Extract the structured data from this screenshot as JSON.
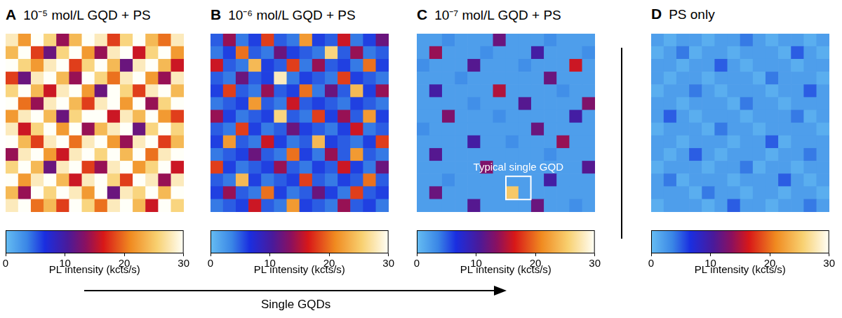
{
  "chart_data": [
    {
      "type": "heatmap",
      "label": "A",
      "title": "10⁻⁵ mol/L GQD + PS",
      "tick_labels": false,
      "cells": [
        [
          28,
          22,
          30,
          26,
          14,
          24,
          30,
          28,
          18,
          26,
          30,
          24,
          20,
          28
        ],
        [
          24,
          30,
          18,
          12,
          26,
          30,
          22,
          14,
          28,
          30,
          16,
          26,
          30,
          22
        ],
        [
          30,
          26,
          22,
          28,
          30,
          18,
          26,
          30,
          24,
          12,
          28,
          30,
          24,
          16
        ],
        [
          18,
          12,
          28,
          30,
          24,
          14,
          30,
          26,
          20,
          28,
          30,
          22,
          14,
          28
        ],
        [
          26,
          30,
          24,
          16,
          28,
          30,
          22,
          12,
          30,
          26,
          18,
          28,
          30,
          24
        ],
        [
          30,
          20,
          14,
          28,
          30,
          24,
          18,
          28,
          30,
          22,
          30,
          14,
          26,
          30
        ],
        [
          22,
          28,
          30,
          24,
          12,
          26,
          30,
          30,
          16,
          28,
          24,
          30,
          22,
          18
        ],
        [
          28,
          16,
          26,
          30,
          22,
          30,
          14,
          24,
          28,
          30,
          12,
          26,
          30,
          26
        ],
        [
          30,
          24,
          18,
          28,
          30,
          20,
          28,
          30,
          22,
          14,
          28,
          30,
          18,
          24
        ],
        [
          14,
          28,
          30,
          22,
          16,
          28,
          30,
          26,
          30,
          24,
          30,
          20,
          28,
          30
        ],
        [
          26,
          30,
          24,
          12,
          28,
          30,
          18,
          14,
          28,
          30,
          22,
          26,
          30,
          16
        ],
        [
          30,
          22,
          28,
          30,
          24,
          16,
          28,
          30,
          26,
          18,
          30,
          28,
          14,
          28
        ],
        [
          24,
          14,
          30,
          26,
          30,
          28,
          22,
          30,
          12,
          28,
          26,
          30,
          24,
          30
        ],
        [
          28,
          30,
          20,
          24,
          18,
          30,
          26,
          20,
          28,
          30,
          24,
          16,
          30,
          26
        ]
      ],
      "colorbar": {
        "label": "PL intensity (kcts/s)",
        "range": [
          0,
          30
        ],
        "ticks": [
          0,
          10,
          20,
          30
        ]
      }
    },
    {
      "type": "heatmap",
      "label": "B",
      "title": "10⁻⁶ mol/L GQD + PS",
      "tick_labels": false,
      "cells": [
        [
          5,
          14,
          4,
          6,
          18,
          5,
          4,
          22,
          6,
          5,
          16,
          4,
          6,
          12
        ],
        [
          4,
          6,
          20,
          5,
          4,
          12,
          6,
          5,
          4,
          26,
          5,
          14,
          4,
          5
        ],
        [
          16,
          5,
          4,
          24,
          6,
          5,
          18,
          4,
          14,
          5,
          6,
          4,
          20,
          6
        ],
        [
          5,
          4,
          12,
          5,
          6,
          28,
          4,
          6,
          5,
          4,
          18,
          6,
          5,
          4
        ],
        [
          6,
          18,
          5,
          4,
          14,
          5,
          6,
          20,
          4,
          12,
          5,
          24,
          6,
          14
        ],
        [
          4,
          5,
          6,
          22,
          5,
          4,
          16,
          5,
          6,
          5,
          4,
          6,
          5,
          4
        ],
        [
          14,
          6,
          4,
          5,
          6,
          26,
          5,
          4,
          18,
          6,
          14,
          5,
          22,
          6
        ],
        [
          5,
          4,
          18,
          6,
          4,
          5,
          12,
          6,
          5,
          4,
          6,
          16,
          4,
          5
        ],
        [
          6,
          22,
          5,
          4,
          16,
          6,
          4,
          5,
          24,
          6,
          5,
          4,
          6,
          18
        ],
        [
          4,
          5,
          6,
          12,
          5,
          4,
          20,
          6,
          4,
          14,
          5,
          22,
          5,
          4
        ],
        [
          18,
          6,
          4,
          5,
          6,
          14,
          5,
          4,
          6,
          5,
          16,
          6,
          4,
          12
        ],
        [
          5,
          4,
          24,
          6,
          4,
          5,
          6,
          18,
          5,
          4,
          6,
          5,
          20,
          5
        ],
        [
          6,
          14,
          5,
          4,
          20,
          6,
          4,
          5,
          12,
          6,
          4,
          18,
          5,
          6
        ],
        [
          4,
          5,
          6,
          16,
          5,
          4,
          22,
          6,
          5,
          4,
          14,
          5,
          6,
          4
        ]
      ],
      "colorbar": {
        "label": "PL intensity (kcts/s)",
        "range": [
          0,
          30
        ],
        "ticks": [
          0,
          10,
          20,
          30
        ]
      }
    },
    {
      "type": "heatmap",
      "label": "C",
      "title": "10⁻⁷ mol/L GQD + PS",
      "tick_labels": false,
      "annotation": "Typical single GQD",
      "cells": [
        [
          2,
          2,
          3,
          2,
          2,
          2,
          12,
          2,
          2,
          2,
          3,
          2,
          2,
          2
        ],
        [
          2,
          14,
          2,
          2,
          2,
          3,
          2,
          2,
          2,
          10,
          2,
          2,
          2,
          3
        ],
        [
          3,
          2,
          2,
          2,
          11,
          2,
          2,
          2,
          3,
          2,
          2,
          2,
          16,
          2
        ],
        [
          2,
          2,
          2,
          3,
          2,
          2,
          2,
          2,
          2,
          2,
          12,
          2,
          2,
          2
        ],
        [
          2,
          10,
          2,
          2,
          2,
          2,
          15,
          2,
          2,
          2,
          2,
          3,
          2,
          2
        ],
        [
          2,
          2,
          2,
          2,
          3,
          2,
          2,
          2,
          11,
          2,
          2,
          2,
          2,
          13
        ],
        [
          2,
          2,
          13,
          2,
          2,
          2,
          3,
          2,
          2,
          2,
          2,
          2,
          10,
          2
        ],
        [
          3,
          2,
          2,
          2,
          2,
          2,
          2,
          2,
          2,
          12,
          2,
          2,
          2,
          2
        ],
        [
          2,
          2,
          2,
          2,
          10,
          2,
          2,
          3,
          2,
          2,
          2,
          14,
          2,
          2
        ],
        [
          2,
          11,
          2,
          2,
          2,
          2,
          2,
          2,
          2,
          2,
          3,
          2,
          2,
          2
        ],
        [
          2,
          2,
          2,
          2,
          2,
          13,
          2,
          2,
          2,
          2,
          2,
          2,
          2,
          11
        ],
        [
          2,
          2,
          3,
          2,
          2,
          2,
          2,
          2,
          2,
          2,
          10,
          2,
          2,
          2
        ],
        [
          2,
          12,
          2,
          2,
          2,
          2,
          2,
          25,
          2,
          2,
          2,
          2,
          2,
          2
        ],
        [
          2,
          2,
          2,
          2,
          11,
          2,
          2,
          2,
          2,
          12,
          2,
          2,
          3,
          2
        ]
      ],
      "colorbar": {
        "label": "PL intensity (kcts/s)",
        "range": [
          0,
          30
        ],
        "ticks": [
          0,
          10,
          20,
          30
        ]
      }
    },
    {
      "type": "heatmap",
      "label": "D",
      "title": "PS only",
      "tick_labels": false,
      "cells": [
        [
          2,
          1,
          2,
          2,
          1,
          2,
          2,
          4,
          2,
          1,
          2,
          2,
          1,
          2
        ],
        [
          1,
          2,
          4,
          1,
          2,
          2,
          1,
          2,
          2,
          2,
          1,
          5,
          2,
          1
        ],
        [
          2,
          2,
          1,
          2,
          2,
          5,
          2,
          1,
          2,
          2,
          2,
          1,
          2,
          2
        ],
        [
          2,
          1,
          2,
          2,
          1,
          2,
          2,
          2,
          1,
          4,
          2,
          2,
          2,
          1
        ],
        [
          1,
          2,
          2,
          4,
          2,
          1,
          2,
          2,
          2,
          1,
          2,
          2,
          5,
          2
        ],
        [
          2,
          2,
          1,
          2,
          2,
          2,
          1,
          4,
          2,
          2,
          1,
          2,
          2,
          2
        ],
        [
          2,
          5,
          2,
          1,
          2,
          2,
          2,
          1,
          2,
          2,
          2,
          4,
          1,
          2
        ],
        [
          1,
          2,
          2,
          2,
          1,
          4,
          2,
          2,
          1,
          2,
          2,
          2,
          2,
          1
        ],
        [
          2,
          2,
          1,
          2,
          2,
          2,
          1,
          2,
          2,
          5,
          1,
          2,
          2,
          2
        ],
        [
          2,
          1,
          2,
          5,
          2,
          1,
          2,
          2,
          2,
          1,
          2,
          2,
          4,
          2
        ],
        [
          1,
          2,
          2,
          2,
          1,
          2,
          2,
          4,
          1,
          2,
          2,
          1,
          2,
          2
        ],
        [
          2,
          4,
          1,
          2,
          2,
          2,
          1,
          2,
          2,
          2,
          5,
          2,
          1,
          2
        ],
        [
          2,
          2,
          2,
          1,
          4,
          2,
          2,
          1,
          2,
          2,
          1,
          2,
          2,
          1
        ],
        [
          1,
          2,
          2,
          2,
          1,
          2,
          5,
          2,
          2,
          1,
          2,
          2,
          4,
          2
        ]
      ],
      "colorbar": {
        "label": "PL intensity (kcts/s)",
        "range": [
          0,
          30
        ],
        "ticks": [
          0,
          10,
          20,
          30
        ]
      }
    }
  ],
  "figure_annotation": "Single GQDs"
}
